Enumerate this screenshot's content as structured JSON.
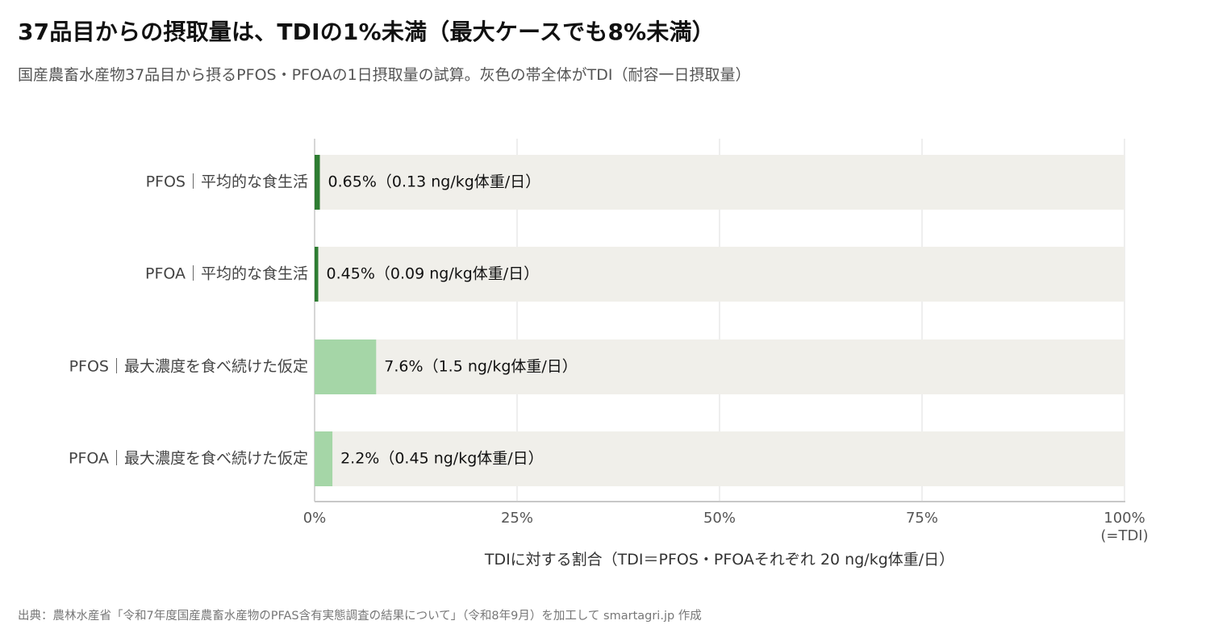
{
  "title": "37品目からの摂取量は、TDIの1%未満（最大ケースでも8%未満）",
  "subtitle": "国産農畜水産物37品目から摂るPFOS・PFOAの1日摂取量の試算。灰色の帯全体がTDI（耐容一日摂取量）",
  "source": "出典：農林水産省「令和7年度国産農畜水産物のPFAS含有実態調査の結果について」（令和8年9月）を加工して smartagri.jp 作成",
  "chart_data": {
    "type": "bar",
    "orientation": "horizontal",
    "categories": [
      "PFOS｜平均的な食生活",
      "PFOA｜平均的な食生活",
      "PFOS｜最大濃度を食べ続けた仮定",
      "PFOA｜最大濃度を食べ続けた仮定"
    ],
    "values": [
      0.65,
      0.45,
      7.6,
      2.2
    ],
    "data_labels": [
      "0.65%（0.13 ng/kg体重/日）",
      "0.45%（0.09 ng/kg体重/日）",
      "7.6%（1.5 ng/kg体重/日）",
      "2.2%（0.45 ng/kg体重/日）"
    ],
    "bar_colors": [
      "#2e7d32",
      "#2e7d32",
      "#a5d6a7",
      "#a5d6a7"
    ],
    "background_band_color": "#f0efea",
    "xlim": [
      0,
      100
    ],
    "xticks": [
      0,
      25,
      50,
      75,
      100
    ],
    "xtick_labels": [
      "0%",
      "25%",
      "50%",
      "75%",
      "100%"
    ],
    "xtick_sublabel_last": "(=TDI)",
    "xlabel": "TDIに対する割合（TDI＝PFOS・PFOAそれぞれ 20 ng/kg体重/日）",
    "grid": true
  }
}
